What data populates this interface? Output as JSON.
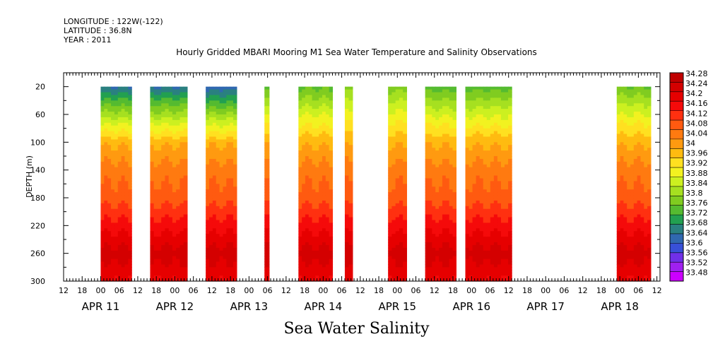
{
  "header": {
    "longitude": "LONGITUDE : 122W(-122)",
    "latitude": "LATITUDE : 36.8N",
    "year": "YEAR : 2011"
  },
  "title": "Hourly Gridded MBARI Mooring M1 Sea Water Temperature and Salinity Observations",
  "footer": "Sea Water Salinity",
  "chart_data": {
    "type": "heatmap",
    "title": "Hourly Gridded MBARI Mooring M1 Sea Water Temperature and Salinity Observations",
    "xlabel": "",
    "ylabel": "DEPTH (m)",
    "x_axis": {
      "range_hours_from_apr11_00": [
        -12,
        181
      ],
      "hour_tick_labels": [
        "12",
        "18",
        "00",
        "06",
        "12",
        "18",
        "00",
        "06",
        "12",
        "18",
        "00",
        "06",
        "12",
        "18",
        "00",
        "06",
        "12",
        "18",
        "00",
        "06",
        "12",
        "18",
        "00",
        "06",
        "12",
        "18",
        "00",
        "06",
        "12",
        "18",
        "00",
        "06",
        "12"
      ],
      "day_labels": [
        "APR 11",
        "APR 12",
        "APR 13",
        "APR 14",
        "APR 15",
        "APR 16",
        "APR 17",
        "APR 18"
      ]
    },
    "y_axis": {
      "range": [
        0,
        300
      ],
      "reversed": true,
      "ticks": [
        "20",
        "60",
        "100",
        "140",
        "180",
        "220",
        "260",
        "300"
      ]
    },
    "colorbar": {
      "labels": [
        "34.28",
        "34.24",
        "34.2",
        "34.16",
        "34.12",
        "34.08",
        "34.04",
        "34",
        "33.96",
        "33.92",
        "33.88",
        "33.84",
        "33.8",
        "33.76",
        "33.72",
        "33.68",
        "33.64",
        "33.6",
        "33.56",
        "33.52",
        "33.48"
      ],
      "colors": [
        "#c00000",
        "#d40000",
        "#e60000",
        "#f50a0a",
        "#ff3010",
        "#ff5a10",
        "#ff7a10",
        "#ff9a10",
        "#ffbb10",
        "#ffe020",
        "#f2f220",
        "#ccf020",
        "#a6e020",
        "#80cc20",
        "#55bb30",
        "#22a050",
        "#2a8080",
        "#3068b0",
        "#3850d8",
        "#7030e8",
        "#a020f0",
        "#cc00ff"
      ]
    },
    "observation_blocks_apr": [
      {
        "start": "Apr 11 00:00",
        "end": "Apr 11 10:00",
        "surface": 33.64
      },
      {
        "start": "Apr 11 16:00",
        "end": "Apr 12 04:00",
        "surface": 33.64
      },
      {
        "start": "Apr 12 10:00",
        "end": "Apr 12 20:00",
        "surface": 33.62
      },
      {
        "start": "Apr 13 05:00",
        "end": "Apr 13 06:30",
        "surface": 33.74
      },
      {
        "start": "Apr 13 16:00",
        "end": "Apr 14 03:00",
        "surface": 33.75
      },
      {
        "start": "Apr 14 07:00",
        "end": "Apr 14 09:30",
        "surface": 33.78
      },
      {
        "start": "Apr 14 21:00",
        "end": "Apr 15 03:00",
        "surface": 33.78
      },
      {
        "start": "Apr 15 09:00",
        "end": "Apr 15 19:00",
        "surface": 33.74
      },
      {
        "start": "Apr 15 22:00",
        "end": "Apr 16 13:00",
        "surface": 33.74
      },
      {
        "start": "Apr 17 23:00",
        "end": "Apr 18 10:00",
        "surface": 33.76
      }
    ],
    "depth_profile_typical": [
      {
        "depth": 20,
        "salinity": 33.72
      },
      {
        "depth": 60,
        "salinity": 33.86
      },
      {
        "depth": 100,
        "salinity": 33.99
      },
      {
        "depth": 140,
        "salinity": 34.06
      },
      {
        "depth": 180,
        "salinity": 34.1
      },
      {
        "depth": 220,
        "salinity": 34.18
      },
      {
        "depth": 260,
        "salinity": 34.26
      },
      {
        "depth": 300,
        "salinity": 34.2
      }
    ]
  }
}
